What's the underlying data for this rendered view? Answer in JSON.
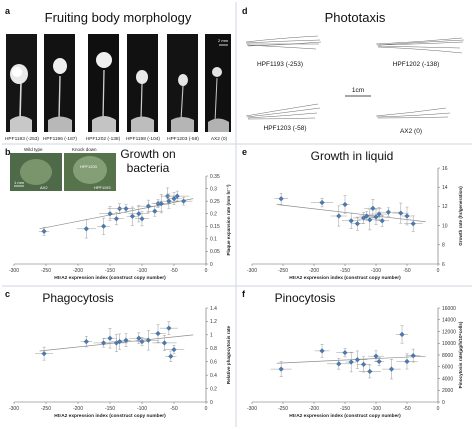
{
  "panels": {
    "a": {
      "letter": "a",
      "title": "Fruiting body morphology",
      "scale_label": "2 mm",
      "strains": [
        "HPF1193 (-253)",
        "HPF1196 (-187)",
        "HPF1202 (-138)",
        "HPF1198 (-104)",
        "HPF1203 (-58)",
        "AX2 (0)"
      ]
    },
    "d": {
      "letter": "d",
      "title": "Phototaxis",
      "scale_label": "1cm",
      "strains": [
        "HPF1193 (-253)",
        "HPF1202 (-138)",
        "HPF1203 (-58)",
        "AX2 (0)"
      ]
    },
    "b": {
      "letter": "b",
      "title_line1": "Growth on",
      "title_line2": "bacteria",
      "inset": {
        "wild_type": "Wild type",
        "knock_down": "Knock down",
        "labels": [
          "1 mm",
          "HPF1203",
          "AX2",
          "HPF1193"
        ]
      }
    },
    "e": {
      "letter": "e",
      "title": "Growth in liquid"
    },
    "c": {
      "letter": "c",
      "title": "Phagocytosis"
    },
    "f": {
      "letter": "f",
      "title": "Pinocytosis"
    }
  },
  "chart_data": [
    {
      "id": "b",
      "type": "scatter",
      "title": "Growth on bacteria",
      "xlabel": "HtrA2 expression index (construct copy number)",
      "ylabel": "Plaque expansion rate (mm hr⁻¹)",
      "xlim": [
        -300,
        0
      ],
      "ylim": [
        0,
        0.35
      ],
      "xticks": [
        -300,
        -250,
        -200,
        -150,
        -100,
        -50,
        0
      ],
      "yticks": [
        0,
        0.05,
        0.1,
        0.15,
        0.2,
        0.25,
        0.3,
        0.35
      ],
      "x": [
        -253,
        -187,
        -160,
        -150,
        -140,
        -135,
        -125,
        -115,
        -105,
        -100,
        -90,
        -80,
        -75,
        -70,
        -60,
        -58,
        -50,
        -45,
        -35
      ],
      "y": [
        0.13,
        0.14,
        0.15,
        0.2,
        0.18,
        0.22,
        0.22,
        0.19,
        0.2,
        0.18,
        0.23,
        0.21,
        0.24,
        0.24,
        0.27,
        0.25,
        0.26,
        0.27,
        0.25
      ],
      "fit": [
        [
          -260,
          0.14
        ],
        [
          -20,
          0.26
        ]
      ],
      "y_axis_side": "right"
    },
    {
      "id": "e",
      "type": "scatter",
      "title": "Growth in liquid",
      "xlabel": "HtrA2 expression index (construct copy number)",
      "ylabel": "Growth rate (hr/generation)",
      "xlim": [
        -300,
        0
      ],
      "ylim": [
        6,
        16
      ],
      "xticks": [
        -300,
        -250,
        -200,
        -150,
        -100,
        -50,
        0
      ],
      "yticks": [
        6,
        8,
        10,
        12,
        14,
        16
      ],
      "x": [
        -253,
        -187,
        -160,
        -150,
        -140,
        -130,
        -120,
        -115,
        -110,
        -105,
        -100,
        -95,
        -90,
        -80,
        -60,
        -50,
        -40
      ],
      "y": [
        12.8,
        12.4,
        11.0,
        12.2,
        10.5,
        10.2,
        10.8,
        11.0,
        10.6,
        11.8,
        10.9,
        11.2,
        10.5,
        11.4,
        11.3,
        11.0,
        10.2
      ],
      "fit": [
        [
          -260,
          12.2
        ],
        [
          -20,
          10.4
        ]
      ],
      "y_axis_side": "right"
    },
    {
      "id": "c",
      "type": "scatter",
      "title": "Phagocytosis",
      "xlabel": "HtrA2 expression index (construct copy number)",
      "ylabel": "Relative phagocytosis rate",
      "xlim": [
        -300,
        0
      ],
      "ylim": [
        0,
        1.4
      ],
      "xticks": [
        -300,
        -250,
        -200,
        -150,
        -100,
        -50,
        0
      ],
      "yticks": [
        0,
        0.2,
        0.4,
        0.6,
        0.8,
        1.0,
        1.2,
        1.4
      ],
      "x": [
        -253,
        -187,
        -160,
        -150,
        -140,
        -135,
        -125,
        -105,
        -100,
        -90,
        -75,
        -65,
        -58,
        -55,
        -50
      ],
      "y": [
        0.72,
        0.9,
        0.88,
        0.95,
        0.88,
        0.9,
        0.92,
        0.95,
        0.9,
        0.92,
        1.02,
        0.88,
        1.1,
        0.68,
        0.78
      ],
      "fit": [
        [
          -260,
          0.76
        ],
        [
          -20,
          1.0
        ]
      ],
      "y_axis_side": "right"
    },
    {
      "id": "f",
      "type": "scatter",
      "title": "Pinocytosis",
      "xlabel": "HtrA2 expression index (construct copy number)",
      "ylabel": "Pinocytosis rate(µg/h/10⁶cells)",
      "xlim": [
        -300,
        0
      ],
      "ylim": [
        0,
        16000
      ],
      "xticks": [
        -300,
        -250,
        -200,
        -150,
        -100,
        -50,
        0
      ],
      "yticks": [
        0,
        2000,
        4000,
        6000,
        8000,
        10000,
        12000,
        14000,
        16000
      ],
      "x": [
        -253,
        -187,
        -160,
        -150,
        -140,
        -130,
        -120,
        -110,
        -100,
        -95,
        -75,
        -58,
        -50,
        -40
      ],
      "y": [
        5600,
        8700,
        6500,
        8400,
        6800,
        7200,
        6400,
        5200,
        7800,
        6900,
        5600,
        11500,
        6900,
        7900
      ],
      "fit": [
        [
          -260,
          6600
        ],
        [
          -20,
          7800
        ]
      ],
      "y_axis_side": "right"
    }
  ]
}
